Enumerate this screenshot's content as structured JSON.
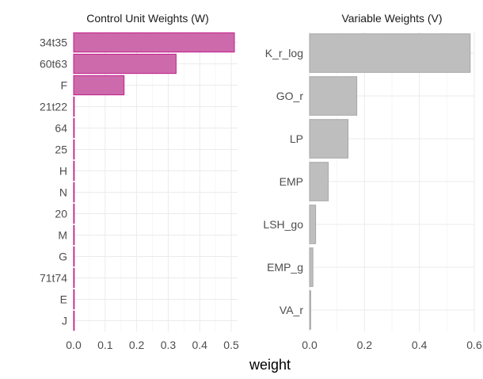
{
  "colors": {
    "w_fill": "#cd6aab",
    "w_stroke": "#c21e8b",
    "v_fill": "#bebebe",
    "v_stroke": "#a6a6a6"
  },
  "shared_xlabel": "weight",
  "chart_data": [
    {
      "type": "bar",
      "orientation": "horizontal",
      "title": "Control Unit Weights (W)",
      "xlabel": "weight",
      "categories": [
        "34t35",
        "60t63",
        "F",
        "21t22",
        "64",
        "25",
        "H",
        "N",
        "20",
        "M",
        "G",
        "71t74",
        "E",
        "J"
      ],
      "values": [
        0.51,
        0.325,
        0.16,
        0.002,
        0.002,
        0.002,
        0.002,
        0.002,
        0.002,
        0.002,
        0.002,
        0.002,
        0.002,
        0.002
      ],
      "xlim": [
        0,
        0.52
      ],
      "xticks": [
        0.0,
        0.1,
        0.2,
        0.3,
        0.4,
        0.5
      ],
      "xtick_labels": [
        "0.0",
        "0.1",
        "0.2",
        "0.3",
        "0.4",
        "0.5"
      ],
      "grid": true
    },
    {
      "type": "bar",
      "orientation": "horizontal",
      "title": "Variable Weights (V)",
      "xlabel": "weight",
      "categories": [
        "K_r_log",
        "GO_r",
        "LP",
        "EMP",
        "LSH_go",
        "EMP_g",
        "VA_r"
      ],
      "values": [
        0.585,
        0.172,
        0.14,
        0.068,
        0.022,
        0.012,
        0.004
      ],
      "xlim": [
        0,
        0.6
      ],
      "xticks": [
        0.0,
        0.2,
        0.4,
        0.6
      ],
      "xtick_labels": [
        "0.0",
        "0.2",
        "0.4",
        "0.6"
      ],
      "grid": true
    }
  ]
}
